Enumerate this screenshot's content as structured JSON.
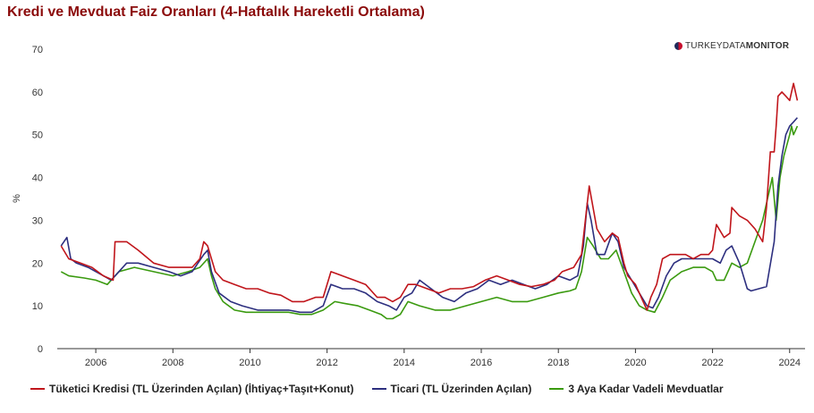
{
  "title": "Kredi ve Mevduat Faiz Oranları (4-Haftalık Hareketli Ortalama)",
  "brand": {
    "light": "TURKEYDATA",
    "bold": "MONITOR",
    "icon": "turkeydatamonitor-logo-icon"
  },
  "chart_data": {
    "type": "line",
    "title": "Kredi ve Mevduat Faiz Oranları (4-Haftalık Hareketli Ortalama)",
    "ylabel": "%",
    "xlabel": "",
    "xlim": [
      2005.0,
      2024.4
    ],
    "ylim": [
      0,
      70
    ],
    "yticks": [
      0,
      10,
      20,
      30,
      40,
      50,
      60,
      70
    ],
    "xticks": [
      2006,
      2008,
      2010,
      2012,
      2014,
      2016,
      2018,
      2020,
      2022,
      2024
    ],
    "grid": false,
    "legend_position": "bottom",
    "series": [
      {
        "name": "Tüketici Kredisi (TL Üzerinden Açılan) (İhtiyaç+Taşıt+Konut)",
        "color": "#c0151b",
        "x": [
          2005.1,
          2005.3,
          2005.6,
          2005.9,
          2006.2,
          2006.45,
          2006.5,
          2006.8,
          2007.1,
          2007.5,
          2007.9,
          2008.2,
          2008.5,
          2008.7,
          2008.8,
          2008.9,
          2009.0,
          2009.1,
          2009.3,
          2009.6,
          2009.9,
          2010.2,
          2010.5,
          2010.8,
          2011.1,
          2011.4,
          2011.7,
          2011.9,
          2012.1,
          2012.4,
          2012.7,
          2013.0,
          2013.3,
          2013.5,
          2013.7,
          2013.9,
          2014.1,
          2014.3,
          2014.6,
          2014.9,
          2015.2,
          2015.5,
          2015.8,
          2016.1,
          2016.4,
          2016.7,
          2017.0,
          2017.3,
          2017.6,
          2017.9,
          2018.1,
          2018.4,
          2018.6,
          2018.7,
          2018.8,
          2018.9,
          2019.0,
          2019.2,
          2019.4,
          2019.55,
          2019.7,
          2019.8,
          2020.0,
          2020.2,
          2020.3,
          2020.4,
          2020.55,
          2020.7,
          2020.9,
          2021.1,
          2021.3,
          2021.5,
          2021.7,
          2021.9,
          2022.0,
          2022.1,
          2022.3,
          2022.45,
          2022.5,
          2022.7,
          2022.9,
          2023.1,
          2023.3,
          2023.35,
          2023.4,
          2023.5,
          2023.6,
          2023.65,
          2023.7,
          2023.8,
          2023.9,
          2024.0,
          2024.05,
          2024.1,
          2024.2
        ],
        "values": [
          24,
          21,
          20,
          19,
          17,
          16,
          25,
          25,
          23,
          20,
          19,
          19,
          19,
          21,
          25,
          24,
          21,
          18,
          16,
          15,
          14,
          14,
          13,
          12.5,
          11,
          11,
          12,
          12,
          18,
          17,
          16,
          15,
          12,
          12,
          11,
          12,
          15,
          15,
          14,
          13,
          14,
          14,
          14.5,
          16,
          17,
          16,
          15,
          14.5,
          15,
          16,
          18,
          19,
          22,
          30,
          38,
          33,
          28,
          25,
          27,
          26,
          20,
          17,
          15,
          11,
          9,
          12,
          15,
          21,
          22,
          22,
          22,
          21,
          22,
          22,
          23,
          29,
          26,
          27,
          33,
          31,
          30,
          28,
          25,
          29,
          33,
          46,
          46,
          52,
          59,
          60,
          59,
          58,
          60,
          62,
          58
        ]
      },
      {
        "name": "Ticari (TL Üzerinden Açılan)",
        "color": "#2d2f7f",
        "x": [
          2005.1,
          2005.25,
          2005.35,
          2005.5,
          2005.8,
          2006.2,
          2006.4,
          2006.8,
          2007.1,
          2007.5,
          2007.9,
          2008.2,
          2008.5,
          2008.8,
          2008.9,
          2009.0,
          2009.2,
          2009.5,
          2009.8,
          2010.2,
          2010.6,
          2011.0,
          2011.3,
          2011.6,
          2011.9,
          2012.1,
          2012.4,
          2012.7,
          2013.0,
          2013.3,
          2013.6,
          2013.8,
          2014.0,
          2014.2,
          2014.4,
          2014.7,
          2015.0,
          2015.3,
          2015.6,
          2015.9,
          2016.2,
          2016.5,
          2016.8,
          2017.1,
          2017.4,
          2017.7,
          2018.0,
          2018.3,
          2018.5,
          2018.65,
          2018.75,
          2018.85,
          2019.0,
          2019.2,
          2019.4,
          2019.55,
          2019.7,
          2019.9,
          2020.1,
          2020.3,
          2020.45,
          2020.6,
          2020.8,
          2021.0,
          2021.2,
          2021.5,
          2021.8,
          2022.0,
          2022.2,
          2022.35,
          2022.5,
          2022.7,
          2022.9,
          2023.0,
          2023.2,
          2023.4,
          2023.6,
          2023.7,
          2023.8,
          2023.9,
          2024.0,
          2024.1,
          2024.2
        ],
        "values": [
          24,
          26,
          21,
          20,
          19,
          17,
          16,
          20,
          20,
          19,
          18,
          17,
          18,
          22,
          23,
          18,
          13,
          11,
          10,
          9,
          9,
          9,
          8.5,
          8.5,
          10,
          15,
          14,
          14,
          13,
          11,
          10,
          9,
          12,
          13,
          16,
          14,
          12,
          11,
          13,
          14,
          16,
          15,
          16,
          15,
          14,
          15,
          17,
          16,
          17,
          24,
          34,
          30,
          22,
          22,
          27,
          25,
          19,
          16,
          13,
          10,
          9.5,
          12,
          17,
          20,
          21,
          21,
          21,
          21,
          20,
          23,
          24,
          20,
          14,
          13.5,
          14,
          14.5,
          25,
          38,
          45,
          50,
          52,
          53,
          54
        ]
      },
      {
        "name": "3 Aya Kadar Vadeli Mevduatlar",
        "color": "#3a9a0f",
        "x": [
          2005.1,
          2005.3,
          2005.7,
          2006.0,
          2006.3,
          2006.6,
          2007.0,
          2007.5,
          2008.0,
          2008.4,
          2008.7,
          2008.9,
          2009.0,
          2009.1,
          2009.3,
          2009.6,
          2009.9,
          2010.3,
          2010.7,
          2011.0,
          2011.3,
          2011.6,
          2011.9,
          2012.2,
          2012.5,
          2012.8,
          2013.1,
          2013.4,
          2013.55,
          2013.7,
          2013.9,
          2014.1,
          2014.4,
          2014.8,
          2015.2,
          2015.6,
          2016.0,
          2016.4,
          2016.8,
          2017.2,
          2017.6,
          2018.0,
          2018.3,
          2018.45,
          2018.6,
          2018.75,
          2018.9,
          2019.1,
          2019.3,
          2019.5,
          2019.7,
          2019.9,
          2020.1,
          2020.3,
          2020.5,
          2020.7,
          2020.9,
          2021.2,
          2021.5,
          2021.8,
          2022.0,
          2022.1,
          2022.3,
          2022.5,
          2022.7,
          2022.9,
          2023.1,
          2023.3,
          2023.45,
          2023.55,
          2023.65,
          2023.75,
          2023.85,
          2024.0,
          2024.05,
          2024.1,
          2024.2
        ],
        "values": [
          18,
          17,
          16.5,
          16,
          15,
          18,
          19,
          18,
          17,
          18,
          19,
          21,
          17,
          14,
          11,
          9,
          8.5,
          8.5,
          8.5,
          8.5,
          8,
          8,
          9,
          11,
          10.5,
          10,
          9,
          8,
          7,
          7,
          8,
          11,
          10,
          9,
          9,
          10,
          11,
          12,
          11,
          11,
          12,
          13,
          13.5,
          14,
          18,
          26,
          24,
          21,
          21,
          23,
          18,
          13,
          10,
          9,
          8.5,
          12,
          16,
          18,
          19,
          19,
          18,
          16,
          16,
          20,
          19,
          20,
          25,
          30,
          36,
          40,
          30,
          40,
          45,
          50,
          52,
          50,
          52
        ]
      }
    ]
  }
}
